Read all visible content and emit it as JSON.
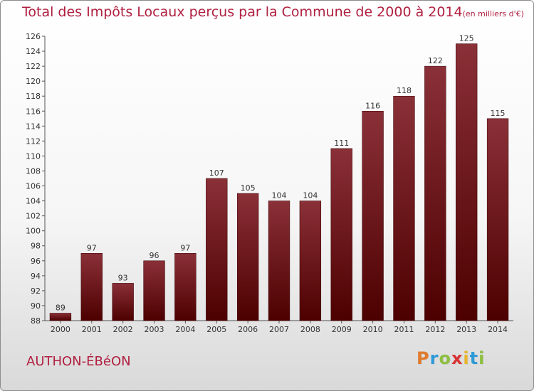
{
  "chart_data": {
    "type": "bar",
    "title": "Total des Impôts Locaux perçus par la Commune de 2000 à 2014",
    "unit": "(en milliers d'€)",
    "categories": [
      "2000",
      "2001",
      "2002",
      "2003",
      "2004",
      "2005",
      "2006",
      "2007",
      "2008",
      "2009",
      "2010",
      "2011",
      "2012",
      "2013",
      "2014"
    ],
    "values": [
      89,
      97,
      93,
      96,
      97,
      107,
      105,
      104,
      104,
      111,
      116,
      118,
      122,
      125,
      115
    ],
    "ylim": [
      88,
      126
    ],
    "yticks": [
      88,
      90,
      92,
      94,
      96,
      98,
      100,
      102,
      104,
      106,
      108,
      110,
      112,
      114,
      116,
      118,
      120,
      122,
      124,
      126
    ],
    "xlabel": "",
    "ylabel": "",
    "grid": false,
    "bar_color_top": "#8a3038",
    "bar_color_bottom": "#4d0000"
  },
  "commune": "AUTHON-ÉBéON",
  "logo": {
    "letters": [
      "P",
      "r",
      "o",
      "x",
      "i",
      "t",
      "i"
    ],
    "colors": [
      "#e07b2c",
      "#2e9bd8",
      "#8cbf3f",
      "#d93232",
      "#e8b52a",
      "#2e9bd8",
      "#8cbf3f"
    ]
  }
}
